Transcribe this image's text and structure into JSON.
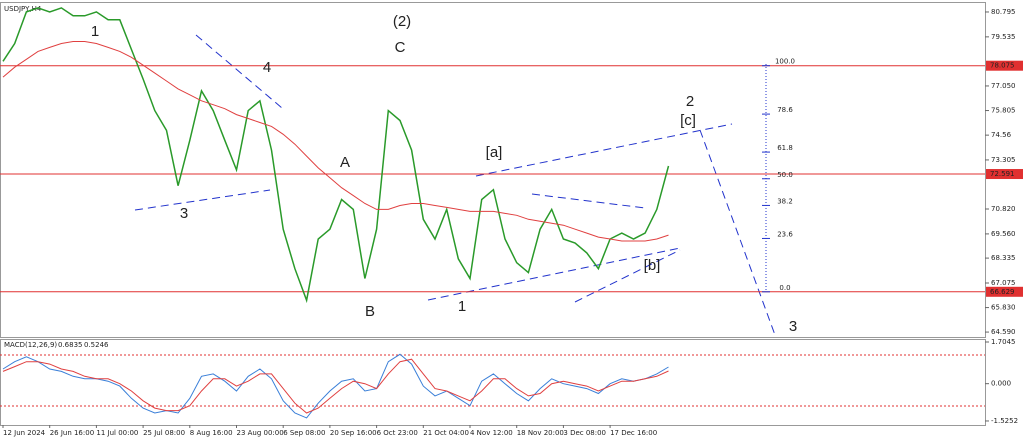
{
  "chart_data": [
    {
      "type": "line",
      "title": "USDJPY,H4",
      "categories": [
        "12 Jun 2024",
        null,
        null,
        null,
        "26 Jun 16:00",
        null,
        null,
        null,
        "11 Jul 00:00",
        null,
        null,
        null,
        "25 Jul 08:00",
        null,
        null,
        null,
        "8 Aug 16:00",
        null,
        null,
        null,
        "23 Aug 00:00",
        null,
        null,
        null,
        "6 Sep 08:00",
        null,
        null,
        null,
        "20 Sep 16:00",
        null,
        null,
        null,
        "6 Oct 23:00",
        null,
        null,
        null,
        "21 Oct 04:00",
        null,
        null,
        null,
        "4 Nov 12:00",
        null,
        null,
        null,
        "18 Nov 20:00",
        null,
        null,
        null,
        "3 Dec 08:00",
        null,
        null,
        null,
        "17 Dec 16:00",
        null,
        null,
        null,
        null,
        null
      ],
      "series": [
        {
          "name": "Price",
          "color": "#2a9a2a",
          "values": [
            78.3,
            79.2,
            80.8,
            81.0,
            80.8,
            81.0,
            80.6,
            80.6,
            80.8,
            80.4,
            80.4,
            78.9,
            77.4,
            75.8,
            74.8,
            72.0,
            74.3,
            76.8,
            75.8,
            74.3,
            72.8,
            75.8,
            76.3,
            73.8,
            69.8,
            67.8,
            66.2,
            69.3,
            69.8,
            71.3,
            70.8,
            67.3,
            69.8,
            75.8,
            75.3,
            73.8,
            70.3,
            69.3,
            70.8,
            68.3,
            67.3,
            71.3,
            71.8,
            69.3,
            68.1,
            67.6,
            69.8,
            70.8,
            69.3,
            69.1,
            68.6,
            67.8,
            69.3,
            69.6,
            69.3,
            69.6,
            70.8,
            73.0
          ]
        },
        {
          "name": "MA",
          "color": "#e04040",
          "values": [
            77.5,
            78.0,
            78.4,
            78.8,
            79.0,
            79.2,
            79.3,
            79.3,
            79.2,
            79.0,
            78.8,
            78.5,
            78.1,
            77.7,
            77.3,
            76.9,
            76.6,
            76.3,
            76.1,
            75.9,
            75.6,
            75.4,
            75.2,
            75.0,
            74.6,
            74.1,
            73.5,
            72.9,
            72.4,
            71.9,
            71.5,
            71.1,
            70.8,
            70.8,
            71.0,
            71.1,
            71.1,
            71.0,
            70.9,
            70.8,
            70.7,
            70.7,
            70.7,
            70.6,
            70.5,
            70.3,
            70.2,
            70.1,
            70.0,
            69.8,
            69.6,
            69.4,
            69.3,
            69.2,
            69.2,
            69.2,
            69.3,
            69.5
          ]
        }
      ],
      "ylim": [
        64.29,
        81.3
      ],
      "yticks": [
        80.795,
        79.535,
        {
          "value": 77.05,
          "label": "77.050"
        },
        75.805,
        74.56,
        73.305,
        {
          "value": 70.82,
          "label": "70.820"
        },
        {
          "value": 69.56,
          "label": "69.560"
        },
        68.335,
        67.075,
        {
          "value": 65.83,
          "label": "65.830"
        },
        {
          "value": 64.59,
          "label": "64.590"
        }
      ],
      "hlines": [
        78.075,
        72.591,
        66.629
      ],
      "hline_color": "#e03030",
      "fib_levels": [
        {
          "value": 100,
          "label": "100.0"
        },
        {
          "value": 78.6,
          "label": "78.6"
        },
        {
          "value": 61.8,
          "label": "61.8"
        },
        {
          "value": 50,
          "label": "50.0"
        },
        {
          "value": 38.2,
          "label": "38.2"
        },
        {
          "value": 23.6,
          "label": "23.6"
        },
        {
          "value": 0,
          "label": "0.0"
        }
      ],
      "annotations": [
        {
          "text": "(2)",
          "color": "#2e8b2e"
        },
        {
          "text": "C",
          "color": "#2233cc"
        },
        {
          "text": "1",
          "color": "#2233cc"
        },
        {
          "text": "4",
          "color": "#2233cc"
        },
        {
          "text": "3",
          "color": "#2233cc"
        },
        {
          "text": "A",
          "color": "#2233cc"
        },
        {
          "text": "B",
          "color": "#2233cc"
        },
        {
          "text": "[a]",
          "color": "#2e8b2e"
        },
        {
          "text": "1",
          "color": "#2233cc"
        },
        {
          "text": "[b]",
          "color": "#2e8b2e"
        },
        {
          "text": "2",
          "color": "#2233cc"
        },
        {
          "text": "[c]",
          "color": "#2e8b2e"
        },
        {
          "text": "3",
          "color": "#2233cc"
        }
      ]
    },
    {
      "type": "line",
      "title": "MACD(12,26,9)",
      "macd_value": 0.6835,
      "signal_value": 0.5246,
      "series": [
        {
          "name": "MACD",
          "color": "#3a7fd8",
          "values": [
            0.6,
            0.9,
            1.1,
            0.9,
            0.6,
            0.5,
            0.3,
            0.2,
            0.2,
            0.1,
            -0.1,
            -0.6,
            -1.0,
            -1.2,
            -1.1,
            -1.2,
            -0.6,
            0.3,
            0.4,
            0.1,
            -0.3,
            0.3,
            0.6,
            0.2,
            -0.7,
            -1.2,
            -1.4,
            -0.8,
            -0.3,
            0.1,
            0.2,
            -0.3,
            -0.2,
            0.9,
            1.2,
            0.8,
            -0.1,
            -0.5,
            -0.3,
            -0.6,
            -0.9,
            0.1,
            0.4,
            0.0,
            -0.4,
            -0.7,
            -0.2,
            0.2,
            0.0,
            -0.1,
            -0.2,
            -0.4,
            0.0,
            0.2,
            0.1,
            0.2,
            0.4,
            0.68
          ]
        },
        {
          "name": "Signal",
          "color": "#e04040",
          "values": [
            0.5,
            0.7,
            0.9,
            0.9,
            0.8,
            0.6,
            0.5,
            0.3,
            0.2,
            0.2,
            0.0,
            -0.3,
            -0.7,
            -1.0,
            -1.1,
            -1.1,
            -0.9,
            -0.3,
            0.2,
            0.2,
            -0.1,
            0.1,
            0.4,
            0.4,
            -0.2,
            -0.8,
            -1.2,
            -1.0,
            -0.6,
            -0.2,
            0.1,
            0.0,
            -0.2,
            0.4,
            0.9,
            1.0,
            0.4,
            -0.2,
            -0.3,
            -0.5,
            -0.7,
            -0.3,
            0.2,
            0.2,
            -0.2,
            -0.5,
            -0.4,
            0.0,
            0.1,
            0.0,
            -0.1,
            -0.3,
            -0.1,
            0.1,
            0.1,
            0.2,
            0.3,
            0.52
          ]
        }
      ],
      "ylim": [
        -1.69,
        1.827
      ],
      "yticks": [
        1.7045,
        {
          "value": 0,
          "label": "0.000"
        },
        -1.5252
      ]
    }
  ]
}
